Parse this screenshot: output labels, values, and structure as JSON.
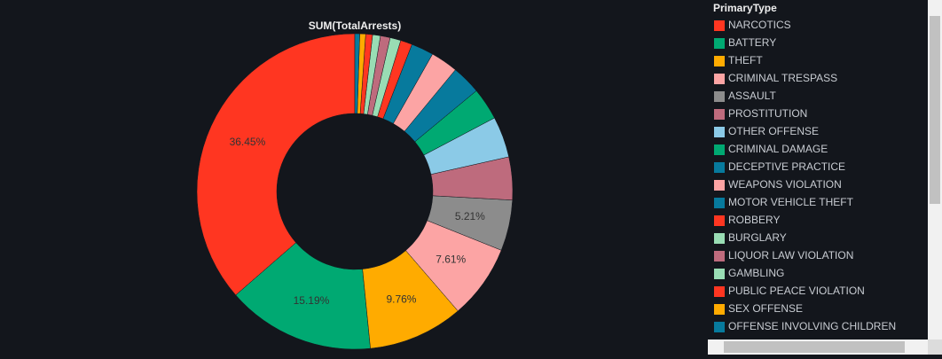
{
  "chart_data": {
    "type": "donut",
    "title": "SUM(TotalArrests)",
    "legend_title": "PrimaryType",
    "categories": [
      "NARCOTICS",
      "BATTERY",
      "THEFT",
      "CRIMINAL TRESPASS",
      "ASSAULT",
      "PROSTITUTION",
      "OTHER OFFENSE",
      "CRIMINAL DAMAGE",
      "DECEPTIVE PRACTICE",
      "WEAPONS VIOLATION",
      "MOTOR VEHICLE THEFT",
      "ROBBERY",
      "BURGLARY",
      "LIQUOR LAW VIOLATION",
      "GAMBLING",
      "PUBLIC PEACE VIOLATION",
      "SEX OFFENSE",
      "OFFENSE INVOLVING CHILDREN"
    ],
    "values": [
      36.45,
      15.19,
      9.76,
      7.61,
      5.21,
      4.4,
      4.2,
      3.3,
      3.0,
      2.8,
      2.3,
      1.2,
      1.1,
      1.0,
      0.8,
      0.7,
      0.6,
      0.5
    ],
    "value_labels": [
      "36.45%",
      "15.19%",
      "9.76%",
      "7.61%",
      "5.21%",
      null,
      null,
      null,
      null,
      null,
      null,
      null,
      null,
      null,
      null,
      null,
      null,
      null
    ],
    "colors": [
      "#ff3621",
      "#00a972",
      "#ffab00",
      "#fca4a4",
      "#8c8c8c",
      "#be6b7d",
      "#8bcae7",
      "#00a972",
      "#077a9d",
      "#fca4a4",
      "#077a9d",
      "#ff3621",
      "#99ddb4",
      "#be6b7d",
      "#99ddb4",
      "#ff3621",
      "#ffab00",
      "#077a9d"
    ]
  }
}
